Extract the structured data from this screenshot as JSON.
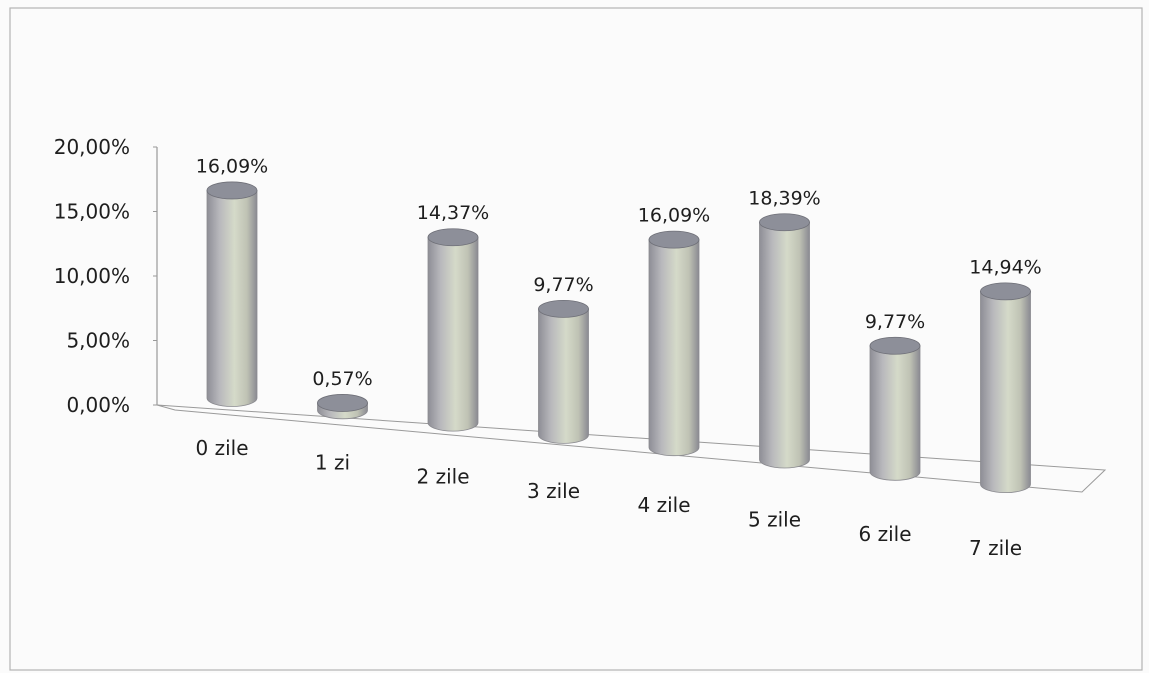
{
  "chart_data": {
    "type": "bar",
    "style": "3d-cylinder",
    "categories": [
      "0 zile",
      "1 zi",
      "2 zile",
      "3 zile",
      "4 zile",
      "5 zile",
      "6  zile",
      "7 zile"
    ],
    "values": [
      16.09,
      0.57,
      14.37,
      9.77,
      16.09,
      18.39,
      9.77,
      14.94
    ],
    "data_labels": [
      "16,09%",
      "0,57%",
      "14,37%",
      "9,77%",
      "16,09%",
      "18,39%",
      "9,77%",
      "14,94%"
    ],
    "y_ticks": [
      {
        "value": 0,
        "label": "0,00%"
      },
      {
        "value": 5,
        "label": "5,00%"
      },
      {
        "value": 10,
        "label": "10,00%"
      },
      {
        "value": 15,
        "label": "15,00%"
      },
      {
        "value": 20,
        "label": "20,00%"
      }
    ],
    "ylim": [
      0,
      20
    ],
    "grid": false,
    "legend": "none",
    "colors": {
      "bar_body_dark": "#8e8e96",
      "bar_body_mid": "#c6c9bb",
      "bar_body_light": "#d7dccb",
      "bar_top": "#8d8f99",
      "axis": "#9a9a9a",
      "text": "#1e1e1e",
      "background": "#fbfbfb",
      "frame": "#b4b4b4"
    }
  }
}
